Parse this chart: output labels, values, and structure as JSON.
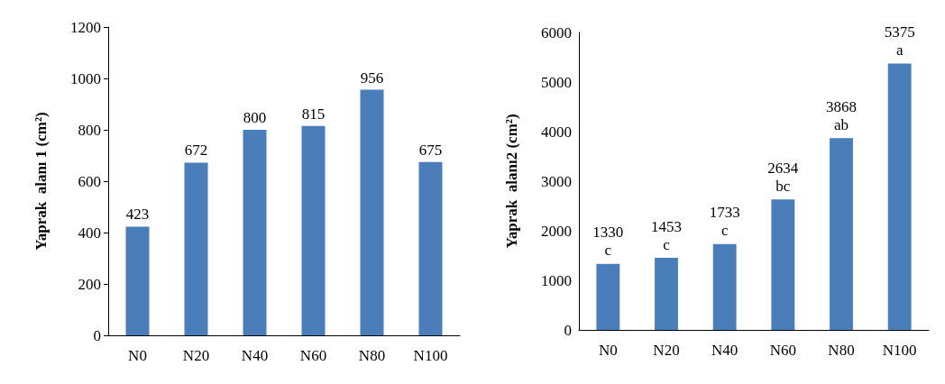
{
  "chart_data": [
    {
      "type": "bar",
      "ylabel": "Yaprak  alanı 1 (cm²)",
      "categories": [
        "N0",
        "N20",
        "N40",
        "N60",
        "N80",
        "N100"
      ],
      "values": [
        423,
        672,
        800,
        815,
        956,
        675
      ],
      "color": "#4a7ebb",
      "ylim": [
        0,
        1200
      ],
      "yticks": [
        0,
        200,
        400,
        600,
        800,
        1000,
        1200
      ],
      "data_labels": true,
      "grid": false
    },
    {
      "type": "bar",
      "ylabel": "Yaprak  alanı2 (cm²)",
      "categories": [
        "N0",
        "N20",
        "N40",
        "N60",
        "N80",
        "N100"
      ],
      "values": [
        1330,
        1453,
        1733,
        2634,
        3868,
        5375
      ],
      "value_labels": [
        "1330\nc",
        "1453\nc",
        "1733\nc",
        "2634\nbc",
        "3868\nab",
        "5375\na"
      ],
      "color": "#4a7ebb",
      "ylim": [
        0,
        6000
      ],
      "yticks": [
        0,
        1000,
        2000,
        3000,
        4000,
        5000,
        6000
      ],
      "grid": false
    }
  ]
}
